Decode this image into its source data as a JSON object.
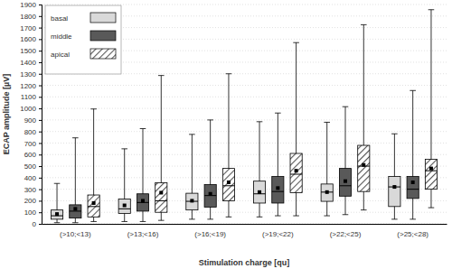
{
  "chart_data": {
    "type": "box",
    "x_label": "Stimulation charge [qu]",
    "y_label": "ECAP amplitude [µV]",
    "categories": [
      "(>10;<13)",
      "(>13;<16)",
      "(>16;<19)",
      "(>19;<22)",
      "(>22;<25)",
      "(>25;<28)"
    ],
    "ylim": [
      0,
      1900
    ],
    "yticks": [
      0,
      100,
      200,
      300,
      400,
      500,
      600,
      700,
      800,
      900,
      1000,
      1100,
      1200,
      1300,
      1400,
      1500,
      1600,
      1700,
      1800,
      1900
    ],
    "grid": true,
    "legend": "upper left",
    "series": [
      {
        "name": "basal",
        "color": "#d9d9d9",
        "values": [
          {
            "min": 10,
            "q1": 40,
            "median": 70,
            "q3": 120,
            "max": 350,
            "mean": 85
          },
          {
            "min": 20,
            "q1": 90,
            "median": 130,
            "q3": 215,
            "max": 650,
            "mean": 160
          },
          {
            "min": 40,
            "q1": 120,
            "median": 195,
            "q3": 265,
            "max": 775,
            "mean": 200
          },
          {
            "min": 60,
            "q1": 180,
            "median": 260,
            "q3": 370,
            "max": 885,
            "mean": 275
          },
          {
            "min": 70,
            "q1": 195,
            "median": 275,
            "q3": 345,
            "max": 880,
            "mean": 275
          },
          {
            "min": 40,
            "q1": 150,
            "median": 320,
            "q3": 410,
            "max": 780,
            "mean": 320
          }
        ]
      },
      {
        "name": "middle",
        "color": "#595959",
        "values": [
          {
            "min": 10,
            "q1": 50,
            "median": 110,
            "q3": 165,
            "max": 745,
            "mean": 130
          },
          {
            "min": 20,
            "q1": 110,
            "median": 185,
            "q3": 260,
            "max": 825,
            "mean": 200
          },
          {
            "min": 40,
            "q1": 145,
            "median": 245,
            "q3": 340,
            "max": 900,
            "mean": 260
          },
          {
            "min": 70,
            "q1": 180,
            "median": 280,
            "q3": 410,
            "max": 960,
            "mean": 310
          },
          {
            "min": 80,
            "q1": 240,
            "median": 330,
            "q3": 480,
            "max": 1015,
            "mean": 370
          },
          {
            "min": 40,
            "q1": 220,
            "median": 300,
            "q3": 410,
            "max": 1155,
            "mean": 360
          }
        ]
      },
      {
        "name": "apical",
        "color": "#ffffff",
        "values": [
          {
            "min": 20,
            "q1": 60,
            "median": 150,
            "q3": 250,
            "max": 995,
            "mean": 180
          },
          {
            "min": 30,
            "q1": 100,
            "median": 200,
            "q3": 355,
            "max": 1285,
            "mean": 270
          },
          {
            "min": 60,
            "q1": 200,
            "median": 330,
            "q3": 480,
            "max": 1300,
            "mean": 360
          },
          {
            "min": 70,
            "q1": 270,
            "median": 430,
            "q3": 610,
            "max": 1570,
            "mean": 460
          },
          {
            "min": 120,
            "q1": 280,
            "median": 500,
            "q3": 680,
            "max": 1725,
            "mean": 510
          },
          {
            "min": 140,
            "q1": 300,
            "median": 460,
            "q3": 560,
            "max": 1855,
            "mean": 480
          }
        ]
      }
    ]
  }
}
